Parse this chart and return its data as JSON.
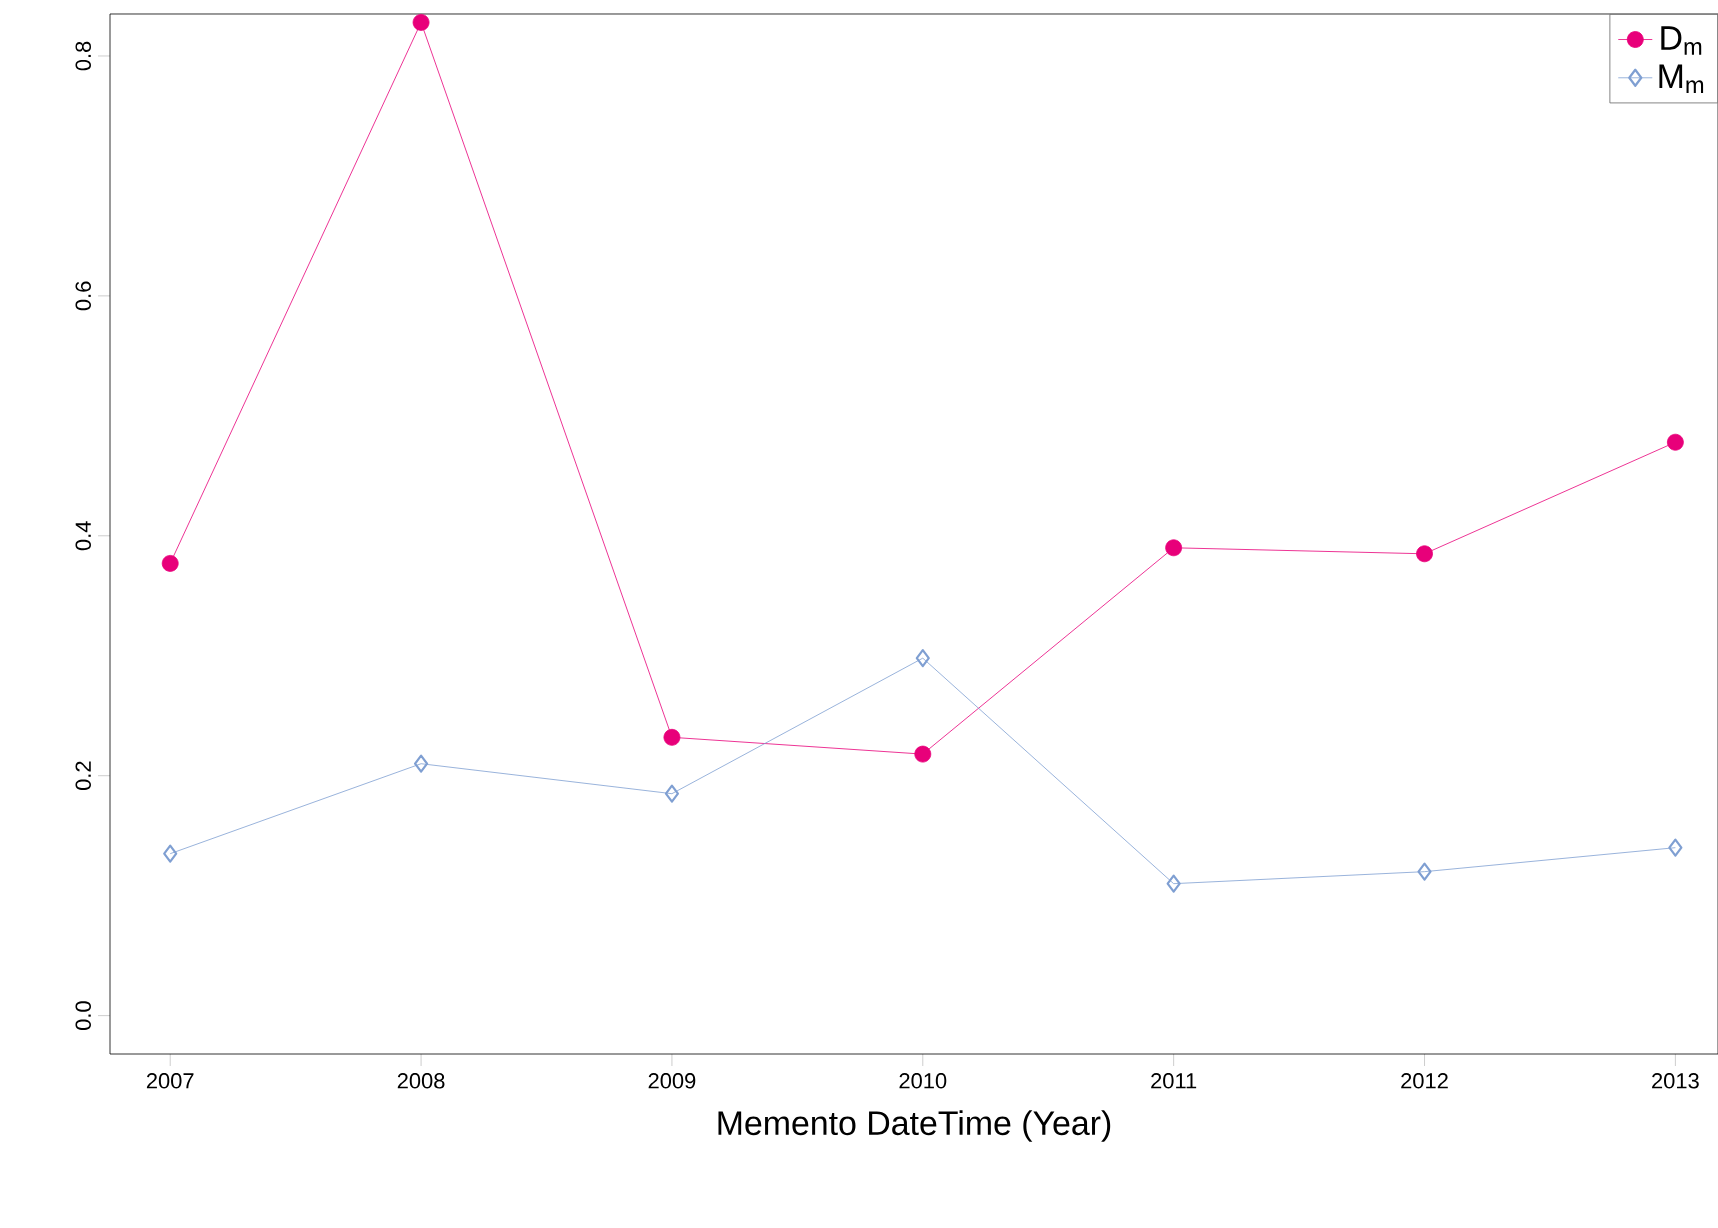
{
  "chart_data": {
    "type": "line",
    "xlabel": "Memento DateTime (Year)",
    "x": [
      2007,
      2008,
      2009,
      2010,
      2011,
      2012,
      2013
    ],
    "series": [
      {
        "name": "D$_{m}$",
        "color": "#e8007a",
        "marker": "circle",
        "values": [
          0.377,
          0.828,
          0.232,
          0.218,
          0.39,
          0.385,
          0.478
        ]
      },
      {
        "name": "M$_{m}$",
        "color": "#7f9fd2",
        "marker": "diamond",
        "values": [
          0.135,
          0.21,
          0.185,
          0.298,
          0.11,
          0.12,
          0.14
        ]
      }
    ],
    "xlim": [
      2006.76,
      2013.17
    ],
    "ylim": [
      -0.032,
      0.835
    ],
    "xticks": [
      2007,
      2008,
      2009,
      2010,
      2011,
      2012,
      2013
    ],
    "yticks": [
      {
        "value": 0,
        "label": "0.0"
      },
      {
        "value": 0.2,
        "label": "0.2"
      },
      {
        "value": 0.4,
        "label": "0.4"
      },
      {
        "value": 0.6,
        "label": "0.6"
      },
      {
        "value": 0.8,
        "label": "0.8"
      }
    ],
    "grid": false,
    "legend": "top right",
    "line_style": "solid"
  }
}
